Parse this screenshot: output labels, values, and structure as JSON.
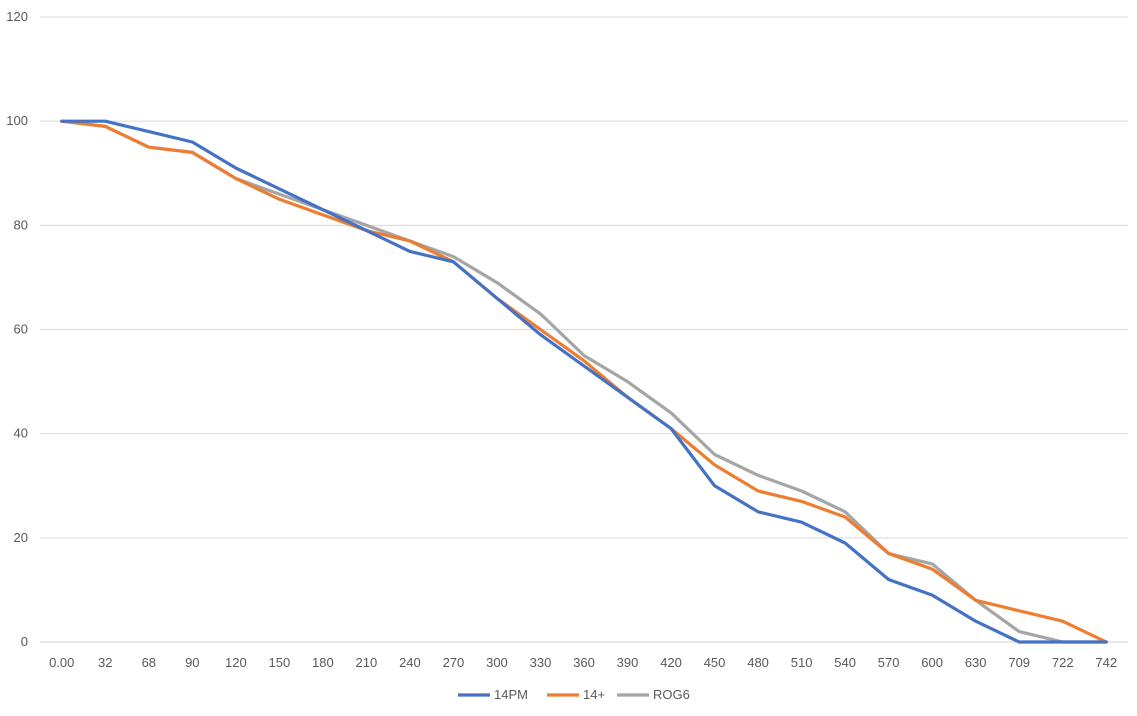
{
  "chart_data": {
    "type": "line",
    "title": "",
    "xlabel": "",
    "ylabel": "",
    "ylim": [
      0,
      120
    ],
    "yticks": [
      0,
      20,
      40,
      60,
      80,
      100,
      120
    ],
    "grid": true,
    "legend_position": "bottom",
    "categories": [
      "0.00",
      "32",
      "68",
      "90",
      "120",
      "150",
      "180",
      "210",
      "240",
      "270",
      "300",
      "330",
      "360",
      "390",
      "420",
      "450",
      "480",
      "510",
      "540",
      "570",
      "600",
      "630",
      "709",
      "722",
      "742"
    ],
    "series": [
      {
        "name": "14PM",
        "color": "#4472C4",
        "values": [
          100,
          100,
          98,
          96,
          91,
          87,
          83,
          79,
          75,
          73,
          66,
          59,
          53,
          47,
          41,
          30,
          25,
          23,
          19,
          12,
          9,
          4,
          0,
          0,
          0
        ]
      },
      {
        "name": "14+",
        "color": "#ED7D31",
        "values": [
          100,
          99,
          95,
          94,
          89,
          85,
          82,
          79,
          77,
          73,
          66,
          60,
          54,
          47,
          41,
          34,
          29,
          27,
          24,
          17,
          14,
          8,
          6,
          4,
          0
        ]
      },
      {
        "name": "ROG6",
        "color": "#A5A5A5",
        "values": [
          100,
          99,
          95,
          94,
          89,
          86,
          83,
          80,
          77,
          74,
          69,
          63,
          55,
          50,
          44,
          36,
          32,
          29,
          25,
          17,
          15,
          8,
          2,
          0,
          0
        ]
      }
    ]
  }
}
